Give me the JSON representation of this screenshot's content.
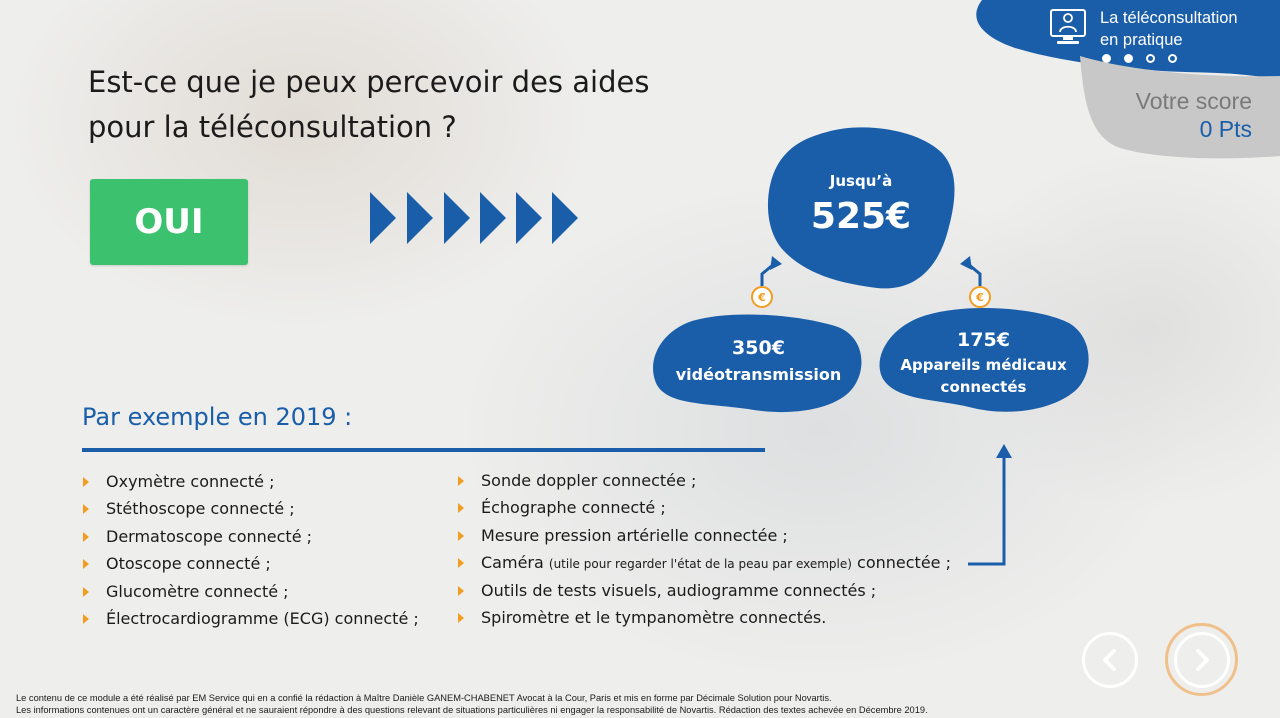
{
  "module": {
    "title_line1": "La téléconsultation",
    "title_line2": "en pratique",
    "icon": "doctor-monitor-icon",
    "progress_dots": [
      true,
      true,
      false,
      false
    ],
    "color": "#1a5eaa"
  },
  "score": {
    "label": "Votre score",
    "value": "0 Pts"
  },
  "question": {
    "line1": "Est-ce que je peux percevoir des aides",
    "line2": "pour la téléconsultation ?"
  },
  "answer": {
    "label": "OUI",
    "color": "#3cc26f"
  },
  "funding": {
    "total_prefix": "Jusqu’à",
    "total_amount": "525€",
    "left_amount": "350€",
    "left_label": "vidéotransmission",
    "right_amount": "175€",
    "right_label_line1": "Appareils médicaux",
    "right_label_line2": "connectés",
    "coin_symbol": "€",
    "coin_color": "#f29c21"
  },
  "examples": {
    "title": "Par exemple en 2019 :",
    "left": [
      "Oxymètre connecté ;",
      "Stéthoscope connecté ;",
      "Dermatoscope connecté ;",
      "Otoscope connecté ;",
      "Glucomètre connecté ;",
      "Électrocardiogramme (ECG) connecté ;"
    ],
    "right": [
      "Sonde doppler connectée ;",
      "Échographe connecté ;",
      "Mesure pression artérielle connectée ;",
      "Outils de tests visuels, audiogramme connectés ;",
      "Spiromètre et le tympanomètre connectés."
    ],
    "camera_item": {
      "main": "Caméra",
      "note": "(utile pour regarder l'état de la peau par exemple)",
      "suffix": "connectée  ;"
    }
  },
  "navigation": {
    "prev_icon": "chevron-left-icon",
    "next_icon": "chevron-right-icon"
  },
  "footer": {
    "line1": "Le contenu de ce module a été réalisé par EM Service qui en a confié la rédaction à Maître Danièle GANEM-CHABENET Avocat à la Cour, Paris et mis en forme par Décimale Solution pour Novartis.",
    "line2": "Les informations contenues ont un caractère général et ne sauraient répondre à des questions relevant de situations particulières ni engager la responsabilité de Novartis. Rédaction des textes achevée en Décembre 2019."
  }
}
